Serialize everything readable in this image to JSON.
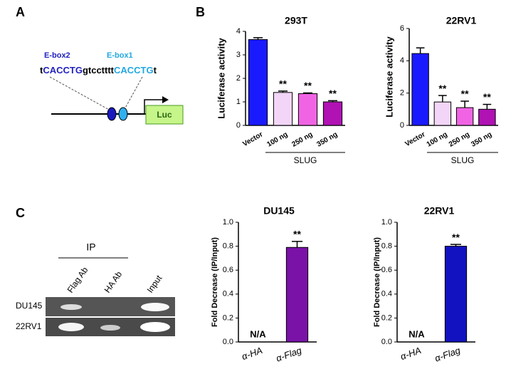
{
  "panel_labels": [
    "A",
    "B",
    "C"
  ],
  "promoter": {
    "ebox2": "E-box2",
    "ebox1": "E-box1",
    "sequence": [
      "t",
      "CACCTG",
      "gtcctttt",
      "CACCTG",
      "t"
    ],
    "reporter": "Luc"
  },
  "ip_gel": {
    "header": "IP",
    "lanes": [
      "Flag Ab",
      "HA Ab",
      "Input"
    ],
    "rows": [
      "DU145",
      "22RV1"
    ]
  },
  "chart_data": [
    {
      "type": "bar",
      "title": "293T",
      "ylabel": "Luciferase activity",
      "categories": [
        "Vector",
        "100 ng",
        "250 ng",
        "350 ng"
      ],
      "values": [
        3.65,
        1.4,
        1.35,
        1.0
      ],
      "errors": [
        0.08,
        0.06,
        0.03,
        0.05
      ],
      "colors": [
        "#1a1aff",
        "#f3d6f7",
        "#f064e4",
        "#b012b4"
      ],
      "annotations": [
        null,
        "**",
        "**",
        "**"
      ],
      "group_label": "SLUG",
      "ylim": [
        0,
        4
      ],
      "yticks": [
        0,
        1,
        2,
        3,
        4
      ]
    },
    {
      "type": "bar",
      "title": "22RV1",
      "ylabel": "Luciferase activity",
      "categories": [
        "Vector",
        "100 ng",
        "250 ng",
        "350 ng"
      ],
      "values": [
        4.45,
        1.45,
        1.1,
        1.0
      ],
      "errors": [
        0.35,
        0.4,
        0.4,
        0.3
      ],
      "colors": [
        "#1a1aff",
        "#f3d6f7",
        "#f064e4",
        "#b012b4"
      ],
      "annotations": [
        null,
        "**",
        "**",
        "**"
      ],
      "group_label": "SLUG",
      "ylim": [
        0,
        6
      ],
      "yticks": [
        0,
        2,
        4,
        6
      ]
    },
    {
      "type": "bar",
      "title": "DU145",
      "ylabel": "Fold Decrease (IP/Input)",
      "categories": [
        "α-HA",
        "α-Flag"
      ],
      "values": [
        null,
        0.79
      ],
      "value_labels": [
        "N/A",
        null
      ],
      "errors": [
        null,
        0.05
      ],
      "colors": [
        "#7a12a8",
        "#7a12a8"
      ],
      "annotations": [
        null,
        "**"
      ],
      "ylim": [
        0,
        1
      ],
      "yticks": [
        {
          "value": 0,
          "label": "0.0"
        },
        0.2,
        0.4,
        0.6,
        0.8,
        {
          "value": 1,
          "label": "1.0"
        }
      ]
    },
    {
      "type": "bar",
      "title": "22RV1",
      "ylabel": "Fold Decrease (IP/Input)",
      "categories": [
        "α-HA",
        "α-Flag"
      ],
      "values": [
        null,
        0.8
      ],
      "value_labels": [
        "N/A",
        null
      ],
      "errors": [
        null,
        0.015
      ],
      "colors": [
        "#1212c0",
        "#1212c0"
      ],
      "annotations": [
        null,
        "**"
      ],
      "ylim": [
        0,
        1
      ],
      "yticks": [
        {
          "value": 0,
          "label": "0.0"
        },
        0.2,
        0.4,
        0.6,
        0.8,
        {
          "value": 1,
          "label": "1.0"
        }
      ]
    }
  ]
}
